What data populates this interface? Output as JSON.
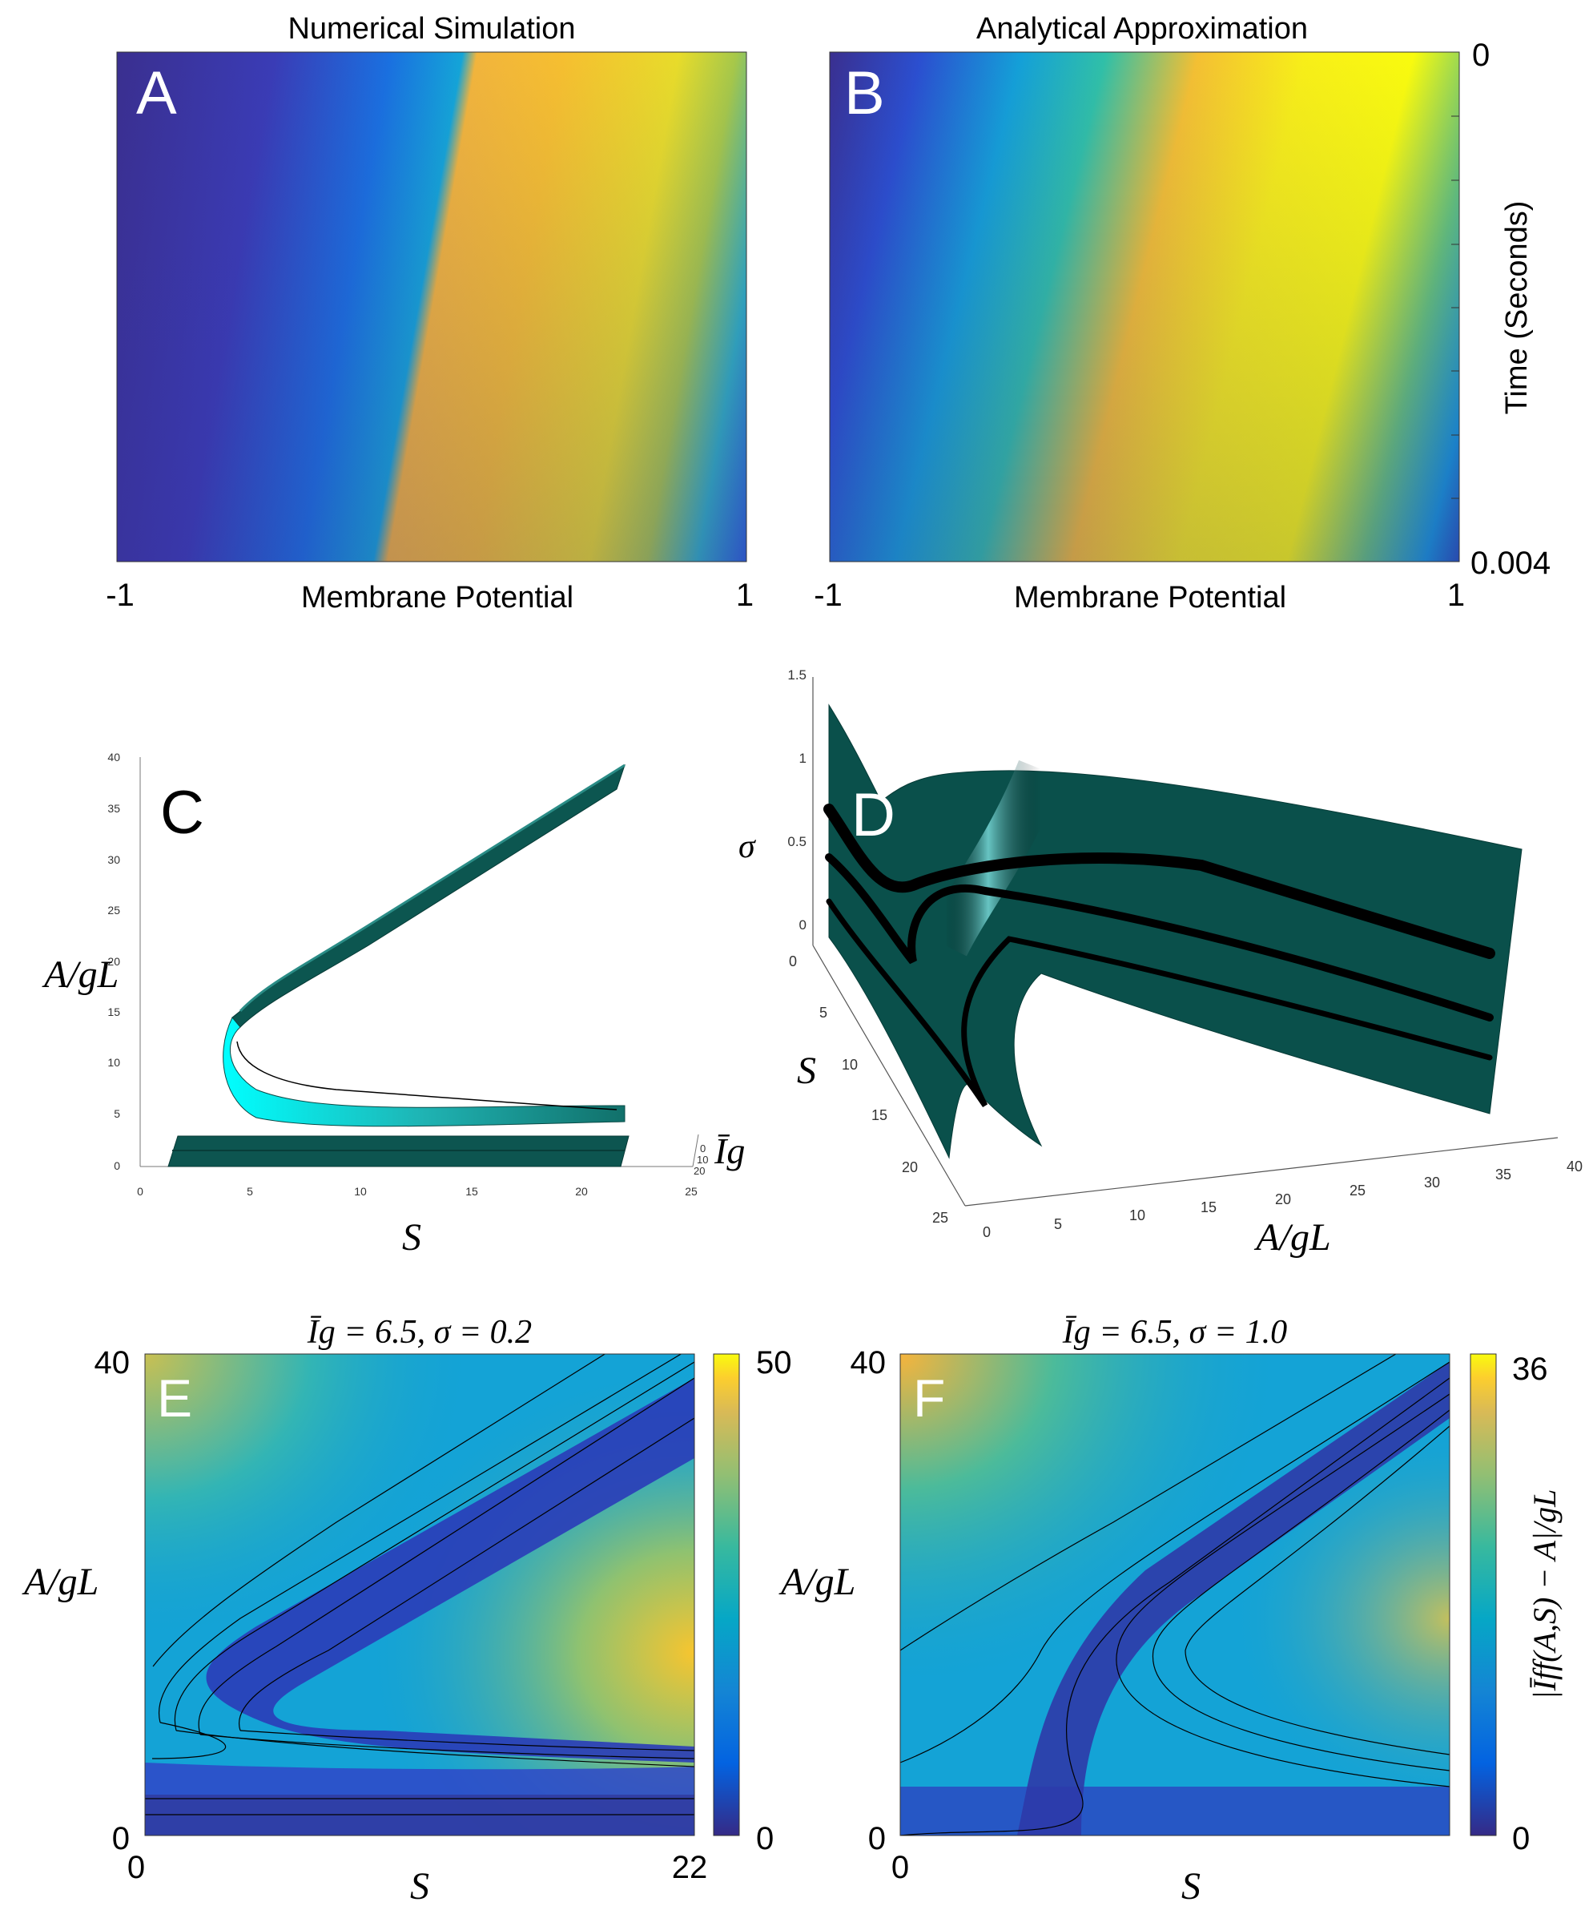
{
  "colors": {
    "parula_low": "#352a87",
    "parula_mid": "#13b1c9",
    "parula_high": "#f9fb0e",
    "surface_dark": "#054a45",
    "surface_light": "#00ffff",
    "panel_letter": "#ffffff"
  },
  "chart_data": [
    {
      "panel": "A",
      "type": "heatmap",
      "title": "Numerical Simulation",
      "xlabel": "Membrane Potential",
      "xticks": [
        "-1",
        "1"
      ],
      "xlim": [
        -1,
        1
      ],
      "ylim": [
        0,
        0.004
      ]
    },
    {
      "panel": "B",
      "type": "heatmap",
      "title": "Analytical Approximation",
      "xlabel": "Membrane Potential",
      "ylabel": "Time (Seconds)",
      "xticks": [
        "-1",
        "1"
      ],
      "yticks": [
        "0",
        "0.004"
      ],
      "xlim": [
        -1,
        1
      ],
      "ylim": [
        0,
        0.004
      ]
    },
    {
      "panel": "C",
      "type": "surface",
      "xlabel": "S",
      "ylabel": "A/gL",
      "zlabel": "Īg",
      "xticks": [
        "0",
        "5",
        "10",
        "15",
        "20",
        "25"
      ],
      "yticks": [
        "0",
        "5",
        "10",
        "15",
        "20",
        "25",
        "30",
        "35",
        "40"
      ],
      "zticks": [
        "0",
        "10",
        "20"
      ],
      "xlim": [
        0,
        25
      ],
      "ylim": [
        0,
        40
      ]
    },
    {
      "panel": "D",
      "type": "surface",
      "xlabel": "A/gL",
      "ylabel": "S",
      "zlabel": "σ",
      "xticks": [
        "0",
        "5",
        "10",
        "15",
        "20",
        "25",
        "30",
        "35",
        "40"
      ],
      "yticks": [
        "0",
        "5",
        "10",
        "15",
        "20",
        "25"
      ],
      "zticks": [
        "0",
        "0.5",
        "1",
        "1.5"
      ],
      "xlim": [
        0,
        40
      ],
      "ylim": [
        0,
        25
      ],
      "zlim": [
        0,
        1.5
      ]
    },
    {
      "panel": "E",
      "type": "heatmap",
      "title": "Īg = 6.5, σ = 0.2",
      "xlabel": "S",
      "ylabel": "A/gL",
      "xticks": [
        "0",
        "22"
      ],
      "yticks": [
        "0",
        "40"
      ],
      "xlim": [
        0,
        22
      ],
      "ylim": [
        0,
        40
      ],
      "colorbar": {
        "ticks": [
          "0",
          "50"
        ],
        "range": [
          0,
          50
        ]
      }
    },
    {
      "panel": "F",
      "type": "heatmap",
      "title": "Īg = 6.5, σ = 1.0",
      "xlabel": "S",
      "ylabel": "A/gL",
      "xticks": [
        "0"
      ],
      "yticks": [
        "0",
        "40"
      ],
      "ylim": [
        0,
        40
      ],
      "colorbar": {
        "ticks": [
          "0",
          "36"
        ],
        "range": [
          0,
          36
        ],
        "label": "|Īff(A,S) − A|/gL"
      }
    }
  ]
}
